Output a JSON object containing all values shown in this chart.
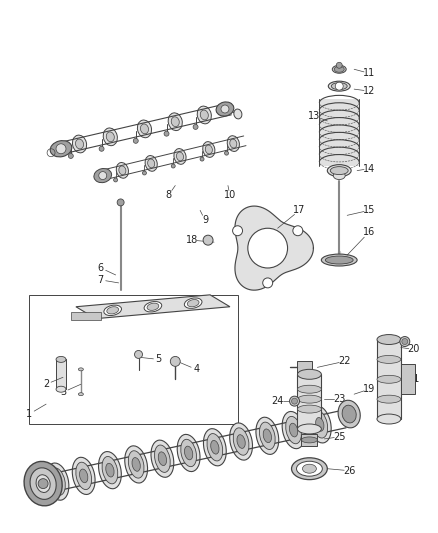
{
  "bg_color": "#ffffff",
  "fig_width": 4.38,
  "fig_height": 5.33,
  "dpi": 100,
  "line_color": "#444444",
  "label_color": "#222222",
  "label_fontsize": 7.0,
  "part_color": "#c8c8c8",
  "part_color_dark": "#a0a0a0",
  "part_color_light": "#e0e0e0"
}
